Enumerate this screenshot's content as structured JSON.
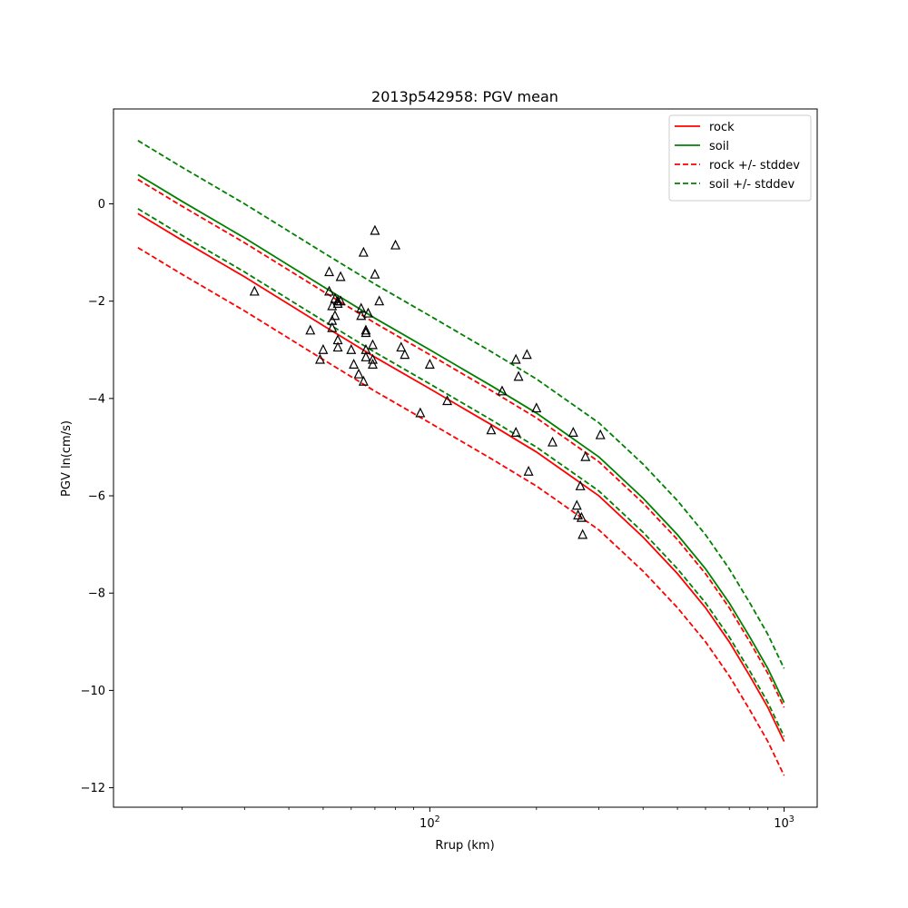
{
  "chart_data": {
    "type": "line",
    "title": "2013p542958: PGV mean",
    "xlabel": "Rrup (km)",
    "ylabel": "PGV ln(cm/s)",
    "x_scale": "log",
    "xlim": [
      12.8,
      1240
    ],
    "ylim": [
      -12.4,
      1.95
    ],
    "grid": false,
    "legend_position": "top-right",
    "x_tick_labels": [
      {
        "value": 100,
        "base": "10",
        "exp": "2"
      },
      {
        "value": 1000,
        "base": "10",
        "exp": "3"
      }
    ],
    "y_ticks": [
      0,
      -2,
      -4,
      -6,
      -8,
      -10,
      -12
    ],
    "y_tick_labels": [
      "0",
      "−2",
      "−4",
      "−6",
      "−8",
      "−10",
      "−12"
    ],
    "series": [
      {
        "name": "rock",
        "color": "#ff0000",
        "style": "solid",
        "x": [
          15,
          20,
          30,
          50,
          70,
          100,
          150,
          200,
          300,
          400,
          500,
          600,
          700,
          800,
          900,
          1000
        ],
        "y": [
          -0.2,
          -0.75,
          -1.5,
          -2.5,
          -3.15,
          -3.8,
          -4.55,
          -5.1,
          -6.0,
          -6.85,
          -7.6,
          -8.3,
          -9.0,
          -9.7,
          -10.35,
          -11.05
        ]
      },
      {
        "name": "soil",
        "color": "#008000",
        "style": "solid",
        "x": [
          15,
          20,
          30,
          50,
          70,
          100,
          150,
          200,
          300,
          400,
          500,
          600,
          700,
          800,
          900,
          1000
        ],
        "y": [
          0.6,
          0.05,
          -0.7,
          -1.7,
          -2.35,
          -3.0,
          -3.75,
          -4.3,
          -5.2,
          -6.05,
          -6.8,
          -7.5,
          -8.2,
          -8.9,
          -9.55,
          -10.25
        ]
      },
      {
        "name": "rock +/- stddev",
        "color": "#ff0000",
        "style": "dashed",
        "x": [
          15,
          20,
          30,
          50,
          70,
          100,
          150,
          200,
          300,
          400,
          500,
          600,
          700,
          800,
          900,
          1000
        ],
        "y": [
          0.5,
          -0.05,
          -0.8,
          -1.8,
          -2.45,
          -3.1,
          -3.85,
          -4.4,
          -5.3,
          -6.15,
          -6.9,
          -7.6,
          -8.3,
          -9.0,
          -9.65,
          -10.35
        ]
      },
      {
        "name": "",
        "color": "#ff0000",
        "style": "dashed",
        "x": [
          15,
          20,
          30,
          50,
          70,
          100,
          150,
          200,
          300,
          400,
          500,
          600,
          700,
          800,
          900,
          1000
        ],
        "y": [
          -0.9,
          -1.45,
          -2.2,
          -3.2,
          -3.85,
          -4.5,
          -5.25,
          -5.8,
          -6.7,
          -7.55,
          -8.3,
          -9.0,
          -9.7,
          -10.4,
          -11.05,
          -11.75
        ]
      },
      {
        "name": "soil +/- stddev",
        "color": "#008000",
        "style": "dashed",
        "x": [
          15,
          20,
          30,
          50,
          70,
          100,
          150,
          200,
          300,
          400,
          500,
          600,
          700,
          800,
          900,
          1000
        ],
        "y": [
          1.3,
          0.75,
          0.0,
          -1.0,
          -1.65,
          -2.3,
          -3.05,
          -3.6,
          -4.5,
          -5.35,
          -6.1,
          -6.8,
          -7.5,
          -8.2,
          -8.85,
          -9.55
        ]
      },
      {
        "name": "",
        "color": "#008000",
        "style": "dashed",
        "x": [
          15,
          20,
          30,
          50,
          70,
          100,
          150,
          200,
          300,
          400,
          500,
          600,
          700,
          800,
          900,
          1000
        ],
        "y": [
          -0.1,
          -0.65,
          -1.4,
          -2.4,
          -3.05,
          -3.7,
          -4.45,
          -5.0,
          -5.9,
          -6.75,
          -7.5,
          -8.2,
          -8.9,
          -9.6,
          -10.25,
          -10.95
        ]
      }
    ],
    "observations": {
      "marker": "triangle-open",
      "color": "#000000",
      "points": [
        [
          32,
          -1.8
        ],
        [
          46,
          -2.6
        ],
        [
          49,
          -3.2
        ],
        [
          50,
          -3.0
        ],
        [
          52,
          -1.4
        ],
        [
          52,
          -1.8
        ],
        [
          53,
          -2.1
        ],
        [
          53,
          -2.4
        ],
        [
          53,
          -2.55
        ],
        [
          54,
          -1.95
        ],
        [
          54,
          -2.3
        ],
        [
          55,
          -2.0
        ],
        [
          55,
          -2.05
        ],
        [
          55,
          -2.8
        ],
        [
          55,
          -2.95
        ],
        [
          56,
          -1.5
        ],
        [
          56,
          -2.0
        ],
        [
          60,
          -3.0
        ],
        [
          61,
          -3.3
        ],
        [
          63,
          -3.5
        ],
        [
          64,
          -2.15
        ],
        [
          64,
          -2.3
        ],
        [
          65,
          -1.0
        ],
        [
          65,
          -3.65
        ],
        [
          66,
          -2.6
        ],
        [
          66,
          -2.65
        ],
        [
          66,
          -3.0
        ],
        [
          66,
          -3.15
        ],
        [
          67,
          -2.25
        ],
        [
          69,
          -3.2
        ],
        [
          69,
          -3.3
        ],
        [
          69,
          -2.9
        ],
        [
          70,
          -0.55
        ],
        [
          70,
          -1.45
        ],
        [
          72,
          -2.0
        ],
        [
          80,
          -0.85
        ],
        [
          83,
          -2.95
        ],
        [
          85,
          -3.1
        ],
        [
          94,
          -4.3
        ],
        [
          100,
          -3.3
        ],
        [
          112,
          -4.05
        ],
        [
          149,
          -4.65
        ],
        [
          160,
          -3.85
        ],
        [
          175,
          -4.7
        ],
        [
          175,
          -3.2
        ],
        [
          178,
          -3.55
        ],
        [
          188,
          -3.1
        ],
        [
          190,
          -5.5
        ],
        [
          200,
          -4.2
        ],
        [
          222,
          -4.9
        ],
        [
          254,
          -4.7
        ],
        [
          260,
          -6.2
        ],
        [
          262,
          -6.4
        ],
        [
          266,
          -5.8
        ],
        [
          268,
          -6.45
        ],
        [
          270,
          -6.8
        ],
        [
          275,
          -5.2
        ],
        [
          303,
          -4.75
        ]
      ]
    }
  }
}
